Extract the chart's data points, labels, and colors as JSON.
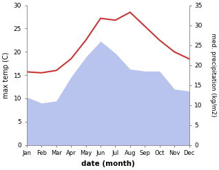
{
  "months": [
    "Jan",
    "Feb",
    "Mar",
    "Apr",
    "May",
    "Jun",
    "Jul",
    "Aug",
    "Sep",
    "Oct",
    "Nov",
    "Dec"
  ],
  "temperature": [
    15.7,
    15.5,
    16.0,
    18.5,
    22.5,
    27.2,
    26.8,
    28.5,
    25.5,
    22.5,
    20.0,
    18.5
  ],
  "precipitation": [
    12.0,
    10.5,
    11.0,
    17.0,
    22.0,
    26.0,
    23.0,
    19.0,
    18.5,
    18.5,
    14.0,
    13.5
  ],
  "temp_color": "#cc3333",
  "precip_color": "#b8c4ee",
  "temp_ylim": [
    0,
    30
  ],
  "precip_ylim": [
    0,
    35
  ],
  "temp_yticks": [
    0,
    5,
    10,
    15,
    20,
    25,
    30
  ],
  "precip_yticks": [
    0,
    5,
    10,
    15,
    20,
    25,
    30,
    35
  ],
  "xlabel": "date (month)",
  "ylabel_left": "max temp (C)",
  "ylabel_right": "med. precipitation (kg/m2)",
  "background_color": "#ffffff",
  "figsize": [
    3.18,
    2.47
  ],
  "dpi": 100
}
